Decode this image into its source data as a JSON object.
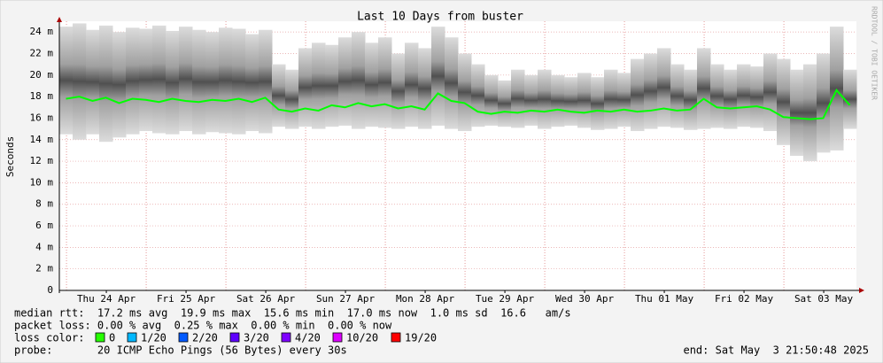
{
  "chart_data": {
    "type": "smokeline",
    "title": "Last 10 Days from buster",
    "ylabel": "Seconds",
    "side_text": "RRDTOOL / TOBI OETIKER",
    "xlim": [
      0,
      240
    ],
    "xticks": [
      {
        "value": 14.15,
        "label": "Thu 24 Apr"
      },
      {
        "value": 38.15,
        "label": "Fri 25 Apr"
      },
      {
        "value": 62.15,
        "label": "Sat 26 Apr"
      },
      {
        "value": 86.15,
        "label": "Sun 27 Apr"
      },
      {
        "value": 110.15,
        "label": "Mon 28 Apr"
      },
      {
        "value": 134.15,
        "label": "Tue 29 Apr"
      },
      {
        "value": 158.15,
        "label": "Wed 30 Apr"
      },
      {
        "value": 182.15,
        "label": "Thu 01 May"
      },
      {
        "value": 206.15,
        "label": "Fri 02 May"
      },
      {
        "value": 230.15,
        "label": "Sat 03 May"
      }
    ],
    "xgrid": [
      2.15,
      26.15,
      50.15,
      74.15,
      98.15,
      122.15,
      146.15,
      170.15,
      194.15,
      218.15
    ],
    "ylim": [
      0,
      0.025
    ],
    "yticks": [
      {
        "value": 0,
        "label": "0"
      },
      {
        "value": 0.002,
        "label": "2 m"
      },
      {
        "value": 0.004,
        "label": "4 m"
      },
      {
        "value": 0.006,
        "label": "6 m"
      },
      {
        "value": 0.008,
        "label": "8 m"
      },
      {
        "value": 0.01,
        "label": "10 m"
      },
      {
        "value": 0.012,
        "label": "12 m"
      },
      {
        "value": 0.014,
        "label": "14 m"
      },
      {
        "value": 0.016,
        "label": "16 m"
      },
      {
        "value": 0.018,
        "label": "18 m"
      },
      {
        "value": 0.02,
        "label": "20 m"
      },
      {
        "value": 0.022,
        "label": "22 m"
      },
      {
        "value": 0.024,
        "label": "24 m"
      }
    ],
    "grid": true,
    "color": "#00ff00",
    "x": [
      2,
      6,
      10,
      14,
      18,
      22,
      26,
      30,
      34,
      38,
      42,
      46,
      50,
      54,
      58,
      62,
      66,
      70,
      74,
      78,
      82,
      86,
      90,
      94,
      98,
      102,
      106,
      110,
      114,
      118,
      122,
      126,
      130,
      134,
      138,
      142,
      146,
      150,
      154,
      158,
      162,
      166,
      170,
      174,
      178,
      182,
      186,
      190,
      194,
      198,
      202,
      206,
      210,
      214,
      218,
      222,
      226,
      230,
      234,
      238
    ],
    "values": [
      0.0178,
      0.018,
      0.0176,
      0.0179,
      0.0174,
      0.0178,
      0.0177,
      0.0175,
      0.0178,
      0.0176,
      0.0175,
      0.0177,
      0.0176,
      0.0178,
      0.0175,
      0.0179,
      0.0168,
      0.0166,
      0.0169,
      0.0167,
      0.0172,
      0.017,
      0.0174,
      0.0171,
      0.0173,
      0.0169,
      0.0171,
      0.0168,
      0.0183,
      0.0176,
      0.0174,
      0.0166,
      0.0164,
      0.0166,
      0.0165,
      0.0167,
      0.0166,
      0.0168,
      0.0166,
      0.0165,
      0.0167,
      0.0166,
      0.0168,
      0.0166,
      0.0167,
      0.0169,
      0.0167,
      0.0168,
      0.0178,
      0.017,
      0.0169,
      0.017,
      0.0171,
      0.0168,
      0.0161,
      0.016,
      0.0159,
      0.016,
      0.0186,
      0.0172
    ],
    "smoke_high": [
      0.0245,
      0.0248,
      0.0242,
      0.0246,
      0.024,
      0.0244,
      0.0243,
      0.0246,
      0.0241,
      0.0245,
      0.0242,
      0.024,
      0.0244,
      0.0243,
      0.0238,
      0.0242,
      0.021,
      0.0205,
      0.0225,
      0.023,
      0.0228,
      0.0235,
      0.024,
      0.023,
      0.0235,
      0.022,
      0.023,
      0.0225,
      0.0245,
      0.0235,
      0.022,
      0.021,
      0.02,
      0.0195,
      0.0205,
      0.02,
      0.0205,
      0.02,
      0.0198,
      0.0202,
      0.0198,
      0.0205,
      0.0202,
      0.0215,
      0.022,
      0.0225,
      0.021,
      0.0205,
      0.0225,
      0.021,
      0.0205,
      0.021,
      0.0208,
      0.022,
      0.0215,
      0.0205,
      0.021,
      0.022,
      0.0245,
      0.0205
    ],
    "smoke_low": [
      0.0145,
      0.014,
      0.0145,
      0.0138,
      0.0142,
      0.0145,
      0.0148,
      0.0146,
      0.0145,
      0.0148,
      0.0145,
      0.0147,
      0.0146,
      0.0145,
      0.0148,
      0.0146,
      0.0152,
      0.015,
      0.0152,
      0.015,
      0.0152,
      0.0153,
      0.015,
      0.0152,
      0.0151,
      0.015,
      0.0152,
      0.015,
      0.0153,
      0.015,
      0.0148,
      0.0152,
      0.0153,
      0.0152,
      0.0151,
      0.0153,
      0.015,
      0.0152,
      0.0153,
      0.0151,
      0.0149,
      0.015,
      0.0152,
      0.0148,
      0.015,
      0.0152,
      0.0151,
      0.0149,
      0.015,
      0.0151,
      0.015,
      0.0152,
      0.0151,
      0.0148,
      0.0135,
      0.0125,
      0.012,
      0.0128,
      0.013,
      0.015
    ],
    "stats": [
      "median rtt:  17.2 ms avg  19.9 ms max  15.6 ms min  17.0 ms now  1.0 ms sd  16.6   am/s",
      "packet loss: 0.00 % avg  0.25 % max  0.00 % min  0.00 % now"
    ],
    "loss_label": "loss color:",
    "loss_colors": [
      {
        "label": "0",
        "color": "#26ff00"
      },
      {
        "label": "1/20",
        "color": "#00b8ff"
      },
      {
        "label": "2/20",
        "color": "#0059ff"
      },
      {
        "label": "3/20",
        "color": "#5e00ff"
      },
      {
        "label": "4/20",
        "color": "#7e00ff"
      },
      {
        "label": "10/20",
        "color": "#dd00ff"
      },
      {
        "label": "19/20",
        "color": "#ff0000"
      }
    ],
    "probe": "probe:       20 ICMP Echo Pings (56 Bytes) every 30s",
    "end": "end: Sat May  3 21:50:48 2025"
  }
}
